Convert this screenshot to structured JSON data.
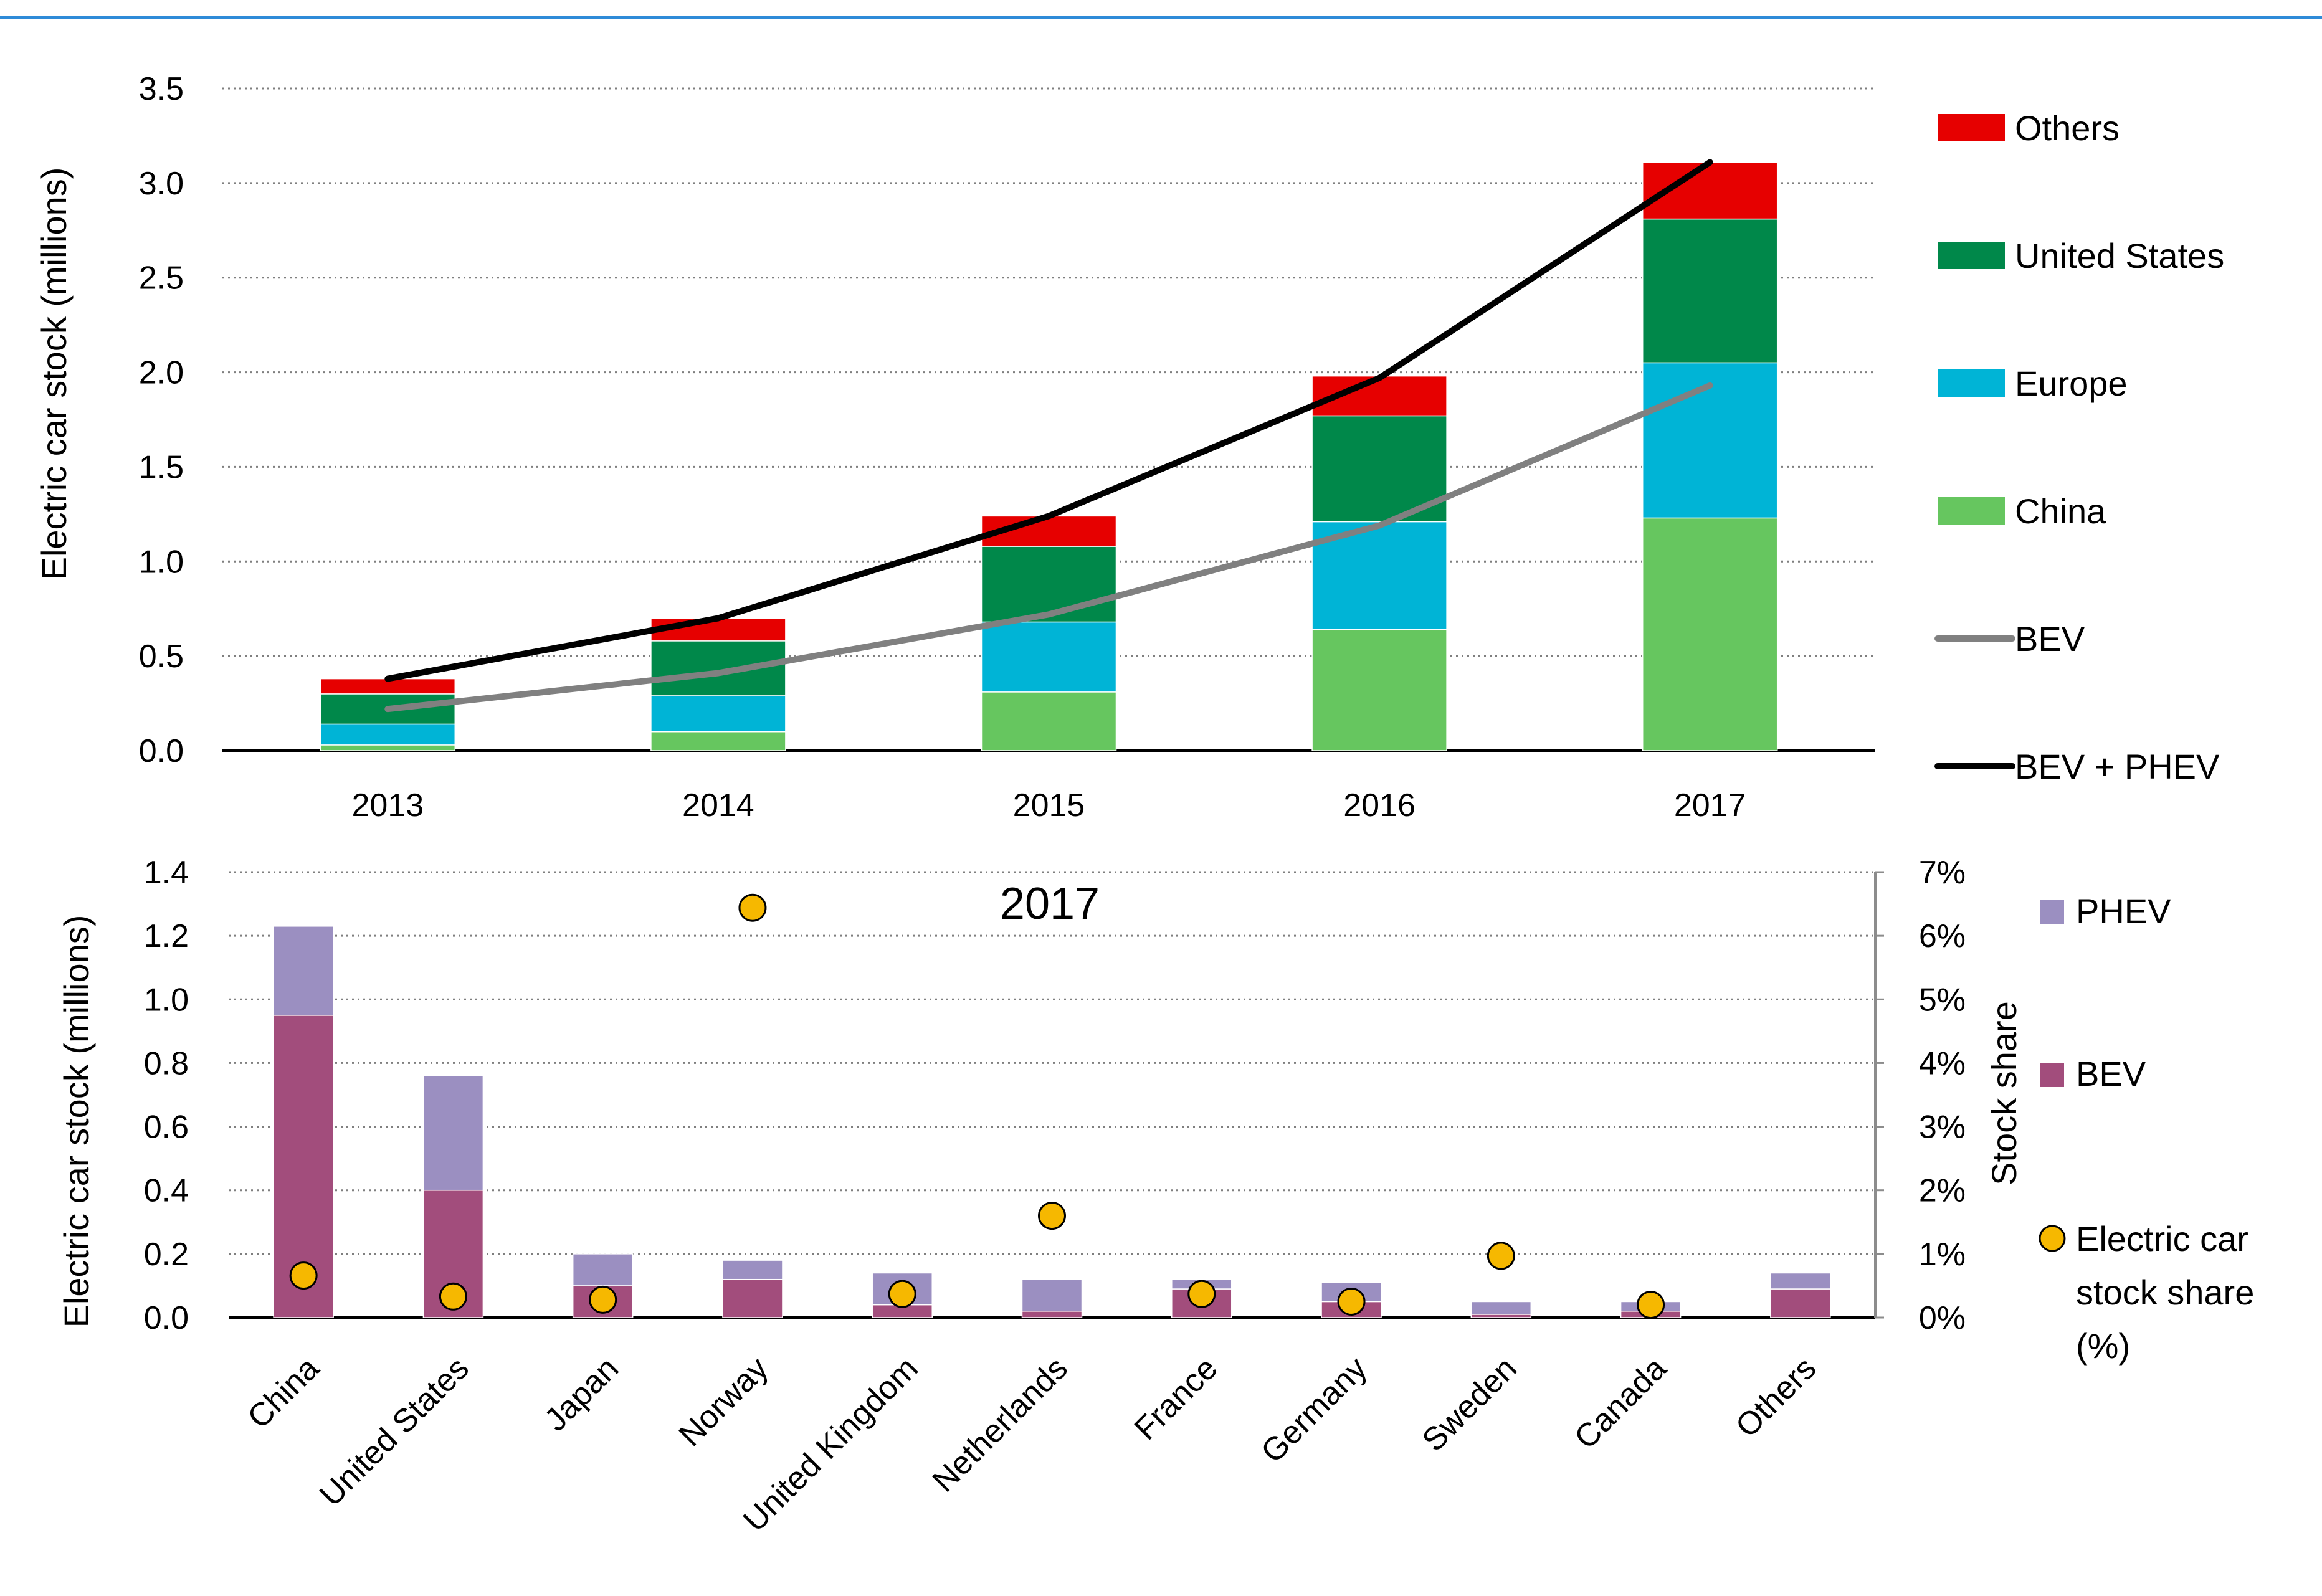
{
  "chart_data": [
    {
      "type": "bar",
      "stacked": true,
      "categories": [
        "2013",
        "2014",
        "2015",
        "2016",
        "2017"
      ],
      "ylabel": "Electric car stock (millions)",
      "ylim": [
        0,
        3.5
      ],
      "yticks": [
        "0.0",
        "0.5",
        "1.0",
        "1.5",
        "2.0",
        "2.5",
        "3.0",
        "3.5"
      ],
      "grid": "dotted horizontal",
      "series": [
        {
          "name": "China",
          "color": "#66c65f",
          "values": [
            0.03,
            0.1,
            0.31,
            0.64,
            1.23
          ]
        },
        {
          "name": "Europe",
          "color": "#00b4d6",
          "values": [
            0.11,
            0.19,
            0.37,
            0.57,
            0.82
          ]
        },
        {
          "name": "United States",
          "color": "#00884a",
          "values": [
            0.16,
            0.29,
            0.4,
            0.56,
            0.76
          ]
        },
        {
          "name": "Others",
          "color": "#e60000",
          "values": [
            0.08,
            0.12,
            0.16,
            0.21,
            0.3
          ]
        }
      ],
      "lines": [
        {
          "name": "BEV",
          "color": "#808080",
          "values": [
            0.22,
            0.41,
            0.72,
            1.19,
            1.93
          ]
        },
        {
          "name": "BEV + PHEV",
          "color": "#000000",
          "values": [
            0.38,
            0.7,
            1.24,
            1.97,
            3.11
          ]
        }
      ],
      "legend": [
        "Others",
        "United States",
        "Europe",
        "China",
        "BEV",
        "BEV + PHEV"
      ],
      "legend_position": "right"
    },
    {
      "type": "bar",
      "stacked": true,
      "title": "2017",
      "categories": [
        "China",
        "United States",
        "Japan",
        "Norway",
        "United Kingdom",
        "Netherlands",
        "France",
        "Germany",
        "Sweden",
        "Canada",
        "Others"
      ],
      "ylabel": "Electric car stock (millions)",
      "ylim": [
        0,
        1.4
      ],
      "yticks": [
        "0.0",
        "0.2",
        "0.4",
        "0.6",
        "0.8",
        "1.0",
        "1.2",
        "1.4"
      ],
      "y2label": "Stock share",
      "y2lim": [
        0,
        7
      ],
      "y2ticks": [
        "0%",
        "1%",
        "2%",
        "3%",
        "4%",
        "5%",
        "6%",
        "7%"
      ],
      "grid": "dotted horizontal",
      "series": [
        {
          "name": "BEV",
          "color": "#a24d7c",
          "values": [
            0.95,
            0.4,
            0.1,
            0.12,
            0.04,
            0.02,
            0.09,
            0.05,
            0.01,
            0.02,
            0.09
          ]
        },
        {
          "name": "PHEV",
          "color": "#9b8fc1",
          "values": [
            0.28,
            0.36,
            0.1,
            0.06,
            0.1,
            0.1,
            0.03,
            0.06,
            0.04,
            0.03,
            0.05
          ]
        }
      ],
      "scatter": {
        "name": "Electric car stock share (%)",
        "color": "#f6b800",
        "axis": "right",
        "values": [
          0.66,
          0.33,
          0.28,
          6.44,
          0.37,
          1.6,
          0.37,
          0.25,
          0.97,
          0.2,
          null
        ]
      },
      "legend": [
        "PHEV",
        "BEV",
        "Electric car stock share (%)"
      ],
      "legend_position": "right"
    }
  ]
}
